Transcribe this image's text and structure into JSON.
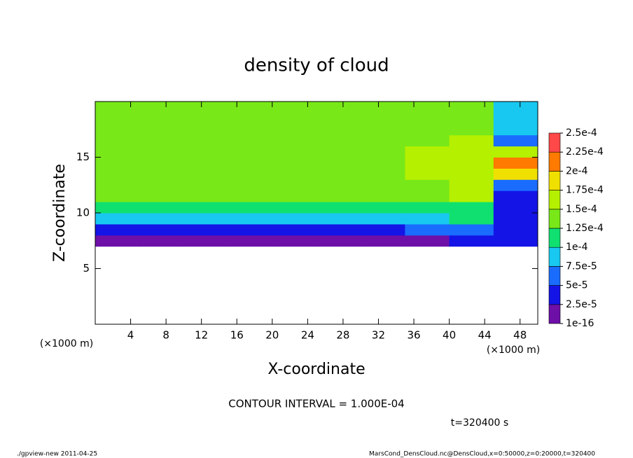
{
  "chart_data": {
    "type": "heatmap",
    "title": "density of cloud",
    "xlabel": "X-coordinate",
    "ylabel": "Z-coordinate",
    "xunit": "(×1000 m)",
    "yunit": "(×1000 m)",
    "annotation": "CONTOUR INTERVAL = 1.000E-04",
    "time_label": "t=320400 s",
    "footer_left": "./gpview-new  2011-04-25",
    "footer_right": "MarsCond_DensCloud.nc@DensCloud,x=0:50000,z=0:20000,t=320400",
    "xlim": [
      0,
      50
    ],
    "ylim": [
      0,
      20
    ],
    "xticks": [
      4,
      8,
      12,
      16,
      20,
      24,
      28,
      32,
      36,
      40,
      44,
      48
    ],
    "yticks": [
      5,
      10,
      15
    ],
    "xbins": [
      0,
      5,
      10,
      15,
      20,
      25,
      30,
      35,
      40,
      45,
      50
    ],
    "ybins": [
      0,
      1,
      2,
      3,
      4,
      5,
      6,
      7,
      8,
      9,
      10,
      11,
      12,
      13,
      14,
      15,
      16,
      17,
      18,
      19,
      20
    ],
    "values": [
      [
        null,
        null,
        null,
        null,
        null,
        null,
        null,
        null,
        null,
        null
      ],
      [
        null,
        null,
        null,
        null,
        null,
        null,
        null,
        null,
        null,
        null
      ],
      [
        null,
        null,
        null,
        null,
        null,
        null,
        null,
        null,
        null,
        null
      ],
      [
        null,
        null,
        null,
        null,
        null,
        null,
        null,
        null,
        null,
        null
      ],
      [
        null,
        null,
        null,
        null,
        null,
        null,
        null,
        null,
        null,
        null
      ],
      [
        null,
        null,
        null,
        null,
        null,
        null,
        null,
        null,
        null,
        null
      ],
      [
        null,
        null,
        null,
        null,
        null,
        null,
        null,
        null,
        null,
        null
      ],
      [
        2e-05,
        2e-05,
        2e-05,
        2e-05,
        2e-05,
        2e-05,
        2e-05,
        2e-05,
        3e-05,
        3e-05
      ],
      [
        4e-05,
        4e-05,
        4e-05,
        4e-05,
        4e-05,
        4e-05,
        4e-05,
        5e-05,
        6e-05,
        3e-05
      ],
      [
        8e-05,
        8e-05,
        8e-05,
        8e-05,
        8e-05,
        8e-05,
        8e-05,
        9e-05,
        0.0001,
        3e-05
      ],
      [
        0.00011,
        0.00011,
        0.00011,
        0.00011,
        0.00011,
        0.00011,
        0.00011,
        0.00011,
        0.00012,
        3e-05
      ],
      [
        0.00014,
        0.00014,
        0.00014,
        0.00014,
        0.00014,
        0.00014,
        0.00014,
        0.00014,
        0.000155,
        4e-05
      ],
      [
        0.00014,
        0.00014,
        0.00014,
        0.00014,
        0.00014,
        0.00014,
        0.00014,
        0.000145,
        0.000155,
        6e-05
      ],
      [
        0.000145,
        0.000145,
        0.000145,
        0.000145,
        0.000145,
        0.000145,
        0.000145,
        0.00015,
        0.00016,
        0.00019
      ],
      [
        0.000145,
        0.000145,
        0.000145,
        0.000145,
        0.000145,
        0.000145,
        0.000145,
        0.00015,
        0.00016,
        0.00021
      ],
      [
        0.000145,
        0.000145,
        0.000145,
        0.000145,
        0.000145,
        0.000145,
        0.000145,
        0.00015,
        0.000155,
        0.00017
      ],
      [
        0.00014,
        0.00014,
        0.00014,
        0.00014,
        0.00014,
        0.00014,
        0.00014,
        0.000145,
        0.00015,
        6e-05
      ],
      [
        0.00014,
        0.00014,
        0.00014,
        0.00014,
        0.00014,
        0.00014,
        0.00014,
        0.00014,
        0.000145,
        8e-05
      ],
      [
        0.00014,
        0.00014,
        0.00014,
        0.00014,
        0.00014,
        0.00014,
        0.00014,
        0.00014,
        0.00014,
        8e-05
      ],
      [
        0.00014,
        0.00014,
        0.00014,
        0.00014,
        0.00014,
        0.00014,
        0.00014,
        0.00014,
        0.00014,
        8e-05
      ]
    ],
    "colorbar": {
      "levels": [
        {
          "value": 1e-16,
          "label": "1e-16"
        },
        {
          "value": 2.5e-05,
          "label": "2.5e-5"
        },
        {
          "value": 5e-05,
          "label": "5e-5"
        },
        {
          "value": 7.5e-05,
          "label": "7.5e-5"
        },
        {
          "value": 0.0001,
          "label": "1e-4"
        },
        {
          "value": 0.000125,
          "label": "1.25e-4"
        },
        {
          "value": 0.00015,
          "label": "1.5e-4"
        },
        {
          "value": 0.000175,
          "label": "1.75e-4"
        },
        {
          "value": 0.0002,
          "label": "2e-4"
        },
        {
          "value": 0.000225,
          "label": "2.25e-4"
        },
        {
          "value": 0.00025,
          "label": "2.5e-4"
        }
      ],
      "colors": [
        "#6e0fa8",
        "#1414e6",
        "#1a6cff",
        "#18c8f0",
        "#10e070",
        "#78e818",
        "#b4f000",
        "#f0e000",
        "#ff7a00",
        "#ff4848"
      ]
    }
  }
}
